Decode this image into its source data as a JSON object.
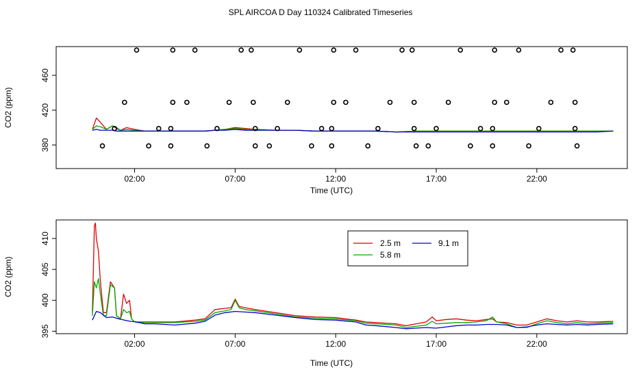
{
  "title": "SPL AIRCOA D  Day 110324  Calibrated Timeseries",
  "colors": {
    "s1": "#dd0000",
    "s2": "#00aa00",
    "s3": "#0000cc",
    "frame": "#000000"
  },
  "chart_data": [
    {
      "type": "line",
      "panel": "top",
      "xlabel": "Time (UTC)",
      "ylabel": "CO2 (ppm)",
      "xlim": [
        -1.9,
        26.5
      ],
      "ylim": [
        353,
        493
      ],
      "xticks": [
        2,
        7,
        12,
        17,
        22
      ],
      "xtick_labels": [
        "02:00",
        "07:00",
        "12:00",
        "17:00",
        "22:00"
      ],
      "yticks": [
        380,
        420,
        460
      ],
      "ytick_labels": [
        "380",
        "420",
        "460"
      ],
      "series": [
        {
          "name": "2.5 m",
          "x": [
            -0.1,
            0.1,
            0.3,
            0.6,
            0.9,
            1.1,
            1.3,
            1.6,
            2.0,
            2.5,
            3.5,
            4.5,
            5.5,
            6.0,
            6.5,
            7.0,
            7.5,
            8.0,
            9.0,
            10.0,
            11.0,
            12.0,
            13.0,
            14.0,
            15.0,
            16.0,
            17.0,
            18.0,
            19.0,
            20.0,
            21.0,
            22.0,
            23.0,
            24.0,
            25.0,
            25.8
          ],
          "values": [
            398,
            411,
            406,
            398,
            402,
            399,
            397,
            400,
            398,
            396,
            396,
            396,
            396,
            397,
            398,
            400,
            399,
            398,
            397,
            397,
            396,
            396,
            396,
            396,
            395,
            396,
            396,
            396,
            396,
            396,
            396,
            396,
            396,
            396,
            396,
            396
          ]
        },
        {
          "name": "5.8 m",
          "x": [
            -0.1,
            0.1,
            0.3,
            0.6,
            0.9,
            1.1,
            1.3,
            1.6,
            2.0,
            2.5,
            3.5,
            4.5,
            5.5,
            6.0,
            6.5,
            7.0,
            7.5,
            8.0,
            9.0,
            10.0,
            11.0,
            12.0,
            13.0,
            14.0,
            15.0,
            16.0,
            17.0,
            18.0,
            19.0,
            20.0,
            21.0,
            22.0,
            23.0,
            24.0,
            25.0,
            25.8
          ],
          "values": [
            398,
            402,
            401,
            398,
            402,
            400,
            397,
            398,
            397,
            396,
            396,
            396,
            396,
            397,
            398,
            399,
            398,
            398,
            397,
            397,
            396,
            396,
            396,
            396,
            395,
            396,
            396,
            396,
            396,
            396,
            396,
            396,
            396,
            396,
            396,
            396
          ]
        },
        {
          "name": "9.1 m",
          "x": [
            -0.1,
            0.1,
            0.3,
            0.6,
            0.9,
            1.1,
            1.3,
            1.6,
            2.0,
            2.5,
            3.5,
            4.5,
            5.5,
            6.0,
            6.5,
            7.0,
            7.5,
            8.0,
            9.0,
            10.0,
            11.0,
            12.0,
            13.0,
            14.0,
            15.0,
            16.0,
            17.0,
            18.0,
            19.0,
            20.0,
            21.0,
            22.0,
            23.0,
            24.0,
            25.0,
            25.8
          ],
          "values": [
            397,
            398,
            397,
            397,
            397,
            396,
            396,
            396,
            396,
            396,
            396,
            396,
            396,
            397,
            397,
            398,
            397,
            397,
            397,
            397,
            396,
            396,
            396,
            396,
            395,
            395,
            395,
            395,
            395,
            395,
            395,
            395,
            395,
            395,
            395,
            396
          ]
        }
      ],
      "flags": [
        {
          "x": 0.4,
          "y": 379
        },
        {
          "x": 1.0,
          "y": 399
        },
        {
          "x": 1.5,
          "y": 429
        },
        {
          "x": 2.1,
          "y": 489
        },
        {
          "x": 2.7,
          "y": 379
        },
        {
          "x": 3.2,
          "y": 399
        },
        {
          "x": 3.8,
          "y": 379
        },
        {
          "x": 3.8,
          "y": 399
        },
        {
          "x": 3.9,
          "y": 429
        },
        {
          "x": 3.9,
          "y": 489
        },
        {
          "x": 4.6,
          "y": 429
        },
        {
          "x": 5.0,
          "y": 489
        },
        {
          "x": 5.6,
          "y": 379
        },
        {
          "x": 6.1,
          "y": 399
        },
        {
          "x": 6.7,
          "y": 429
        },
        {
          "x": 7.3,
          "y": 489
        },
        {
          "x": 7.8,
          "y": 489
        },
        {
          "x": 7.9,
          "y": 429
        },
        {
          "x": 8.0,
          "y": 379
        },
        {
          "x": 8.0,
          "y": 399
        },
        {
          "x": 8.7,
          "y": 379
        },
        {
          "x": 9.1,
          "y": 399
        },
        {
          "x": 9.6,
          "y": 429
        },
        {
          "x": 10.2,
          "y": 489
        },
        {
          "x": 10.8,
          "y": 379
        },
        {
          "x": 11.3,
          "y": 399
        },
        {
          "x": 11.8,
          "y": 379
        },
        {
          "x": 11.8,
          "y": 399
        },
        {
          "x": 11.9,
          "y": 429
        },
        {
          "x": 11.9,
          "y": 489
        },
        {
          "x": 12.5,
          "y": 429
        },
        {
          "x": 13.0,
          "y": 489
        },
        {
          "x": 13.6,
          "y": 379
        },
        {
          "x": 14.1,
          "y": 399
        },
        {
          "x": 14.7,
          "y": 429
        },
        {
          "x": 15.3,
          "y": 489
        },
        {
          "x": 15.8,
          "y": 489
        },
        {
          "x": 15.9,
          "y": 429
        },
        {
          "x": 15.9,
          "y": 399
        },
        {
          "x": 16.0,
          "y": 379
        },
        {
          "x": 16.6,
          "y": 379
        },
        {
          "x": 17.0,
          "y": 399
        },
        {
          "x": 17.6,
          "y": 429
        },
        {
          "x": 18.2,
          "y": 489
        },
        {
          "x": 18.7,
          "y": 379
        },
        {
          "x": 19.2,
          "y": 399
        },
        {
          "x": 19.8,
          "y": 379
        },
        {
          "x": 19.8,
          "y": 399
        },
        {
          "x": 19.9,
          "y": 429
        },
        {
          "x": 19.9,
          "y": 489
        },
        {
          "x": 20.5,
          "y": 429
        },
        {
          "x": 21.1,
          "y": 489
        },
        {
          "x": 21.6,
          "y": 379
        },
        {
          "x": 22.1,
          "y": 399
        },
        {
          "x": 22.7,
          "y": 429
        },
        {
          "x": 23.2,
          "y": 489
        },
        {
          "x": 23.8,
          "y": 489
        },
        {
          "x": 23.9,
          "y": 429
        },
        {
          "x": 23.9,
          "y": 399
        },
        {
          "x": 24.0,
          "y": 379
        }
      ]
    },
    {
      "type": "line",
      "panel": "bottom",
      "xlabel": "Time (UTC)",
      "ylabel": "CO2 (ppm)",
      "xlim": [
        -1.9,
        26.5
      ],
      "ylim": [
        394.6,
        413.0
      ],
      "xticks": [
        2,
        7,
        12,
        17,
        22
      ],
      "xtick_labels": [
        "02:00",
        "07:00",
        "12:00",
        "17:00",
        "22:00"
      ],
      "yticks": [
        395,
        400,
        405,
        410
      ],
      "ytick_labels": [
        "395",
        "400",
        "405",
        "410"
      ],
      "legend": {
        "position": "top-center",
        "entries": [
          "2.5 m",
          "5.8 m",
          "9.1 m"
        ]
      },
      "series": [
        {
          "name": "2.5 m",
          "x": [
            -0.1,
            0.0,
            0.05,
            0.1,
            0.2,
            0.3,
            0.45,
            0.6,
            0.8,
            1.0,
            1.1,
            1.3,
            1.45,
            1.6,
            1.75,
            1.85,
            2.0,
            2.2,
            2.5,
            3.0,
            4.0,
            5.0,
            5.5,
            6.0,
            6.5,
            6.8,
            7.0,
            7.2,
            7.5,
            8.0,
            9.0,
            10.0,
            11.0,
            12.0,
            13.0,
            13.5,
            14.0,
            15.0,
            15.5,
            16.0,
            16.5,
            16.8,
            17.0,
            17.5,
            18.0,
            18.5,
            19.0,
            19.5,
            19.8,
            20.0,
            20.5,
            21.0,
            21.5,
            22.0,
            22.5,
            23.0,
            23.5,
            24.0,
            24.5,
            25.0,
            25.8
          ],
          "values": [
            398.0,
            412.0,
            412.5,
            410.0,
            408.0,
            403.0,
            398.0,
            398.0,
            403.0,
            402.0,
            397.5,
            397.0,
            401.0,
            399.5,
            400.0,
            397.0,
            396.5,
            396.5,
            396.5,
            396.5,
            396.5,
            396.8,
            397.0,
            398.5,
            398.7,
            398.8,
            400.2,
            399.0,
            398.8,
            398.5,
            398.0,
            397.5,
            397.3,
            397.2,
            396.8,
            396.5,
            396.4,
            396.2,
            395.9,
            396.2,
            396.5,
            397.3,
            396.7,
            396.9,
            397.0,
            396.8,
            396.7,
            396.9,
            397.0,
            396.5,
            396.4,
            396.0,
            396.0,
            396.5,
            397.0,
            396.7,
            396.5,
            396.7,
            396.5,
            396.5,
            396.6
          ]
        },
        {
          "name": "5.8 m",
          "x": [
            -0.1,
            0.0,
            0.1,
            0.2,
            0.3,
            0.45,
            0.6,
            0.8,
            1.0,
            1.1,
            1.3,
            1.45,
            1.6,
            1.75,
            1.85,
            2.0,
            2.2,
            2.5,
            3.0,
            4.0,
            5.0,
            5.5,
            6.0,
            6.5,
            6.8,
            7.0,
            7.2,
            7.5,
            8.0,
            9.0,
            10.0,
            11.0,
            12.0,
            13.0,
            13.5,
            14.0,
            15.0,
            15.5,
            16.0,
            16.5,
            16.8,
            17.0,
            17.5,
            18.0,
            18.5,
            19.0,
            19.5,
            19.8,
            20.0,
            20.5,
            21.0,
            21.5,
            22.0,
            22.5,
            23.0,
            23.5,
            24.0,
            24.5,
            25.0,
            25.8
          ],
          "values": [
            397.5,
            403.0,
            402.0,
            403.5,
            401.0,
            397.5,
            397.5,
            402.5,
            402.0,
            397.5,
            397.0,
            398.5,
            398.0,
            398.2,
            397.0,
            396.5,
            396.4,
            396.4,
            396.4,
            396.4,
            396.6,
            396.8,
            398.0,
            398.3,
            398.5,
            400.0,
            398.8,
            398.5,
            398.3,
            397.8,
            397.3,
            397.1,
            397.0,
            396.7,
            396.3,
            396.2,
            396.0,
            395.6,
            395.8,
            396.0,
            396.6,
            396.2,
            396.3,
            396.4,
            396.4,
            396.5,
            396.7,
            397.3,
            396.5,
            396.2,
            395.6,
            395.6,
            396.2,
            396.7,
            396.4,
            396.2,
            396.4,
            396.2,
            396.3,
            396.4
          ]
        },
        {
          "name": "9.1 m",
          "x": [
            -0.1,
            0.1,
            0.3,
            0.6,
            0.9,
            1.2,
            1.5,
            1.8,
            2.1,
            2.5,
            3.0,
            4.0,
            5.0,
            5.5,
            6.0,
            6.5,
            7.0,
            7.5,
            8.0,
            9.0,
            10.0,
            11.0,
            12.0,
            13.0,
            13.5,
            14.0,
            15.0,
            15.5,
            16.0,
            16.5,
            17.0,
            17.5,
            18.0,
            18.5,
            19.0,
            19.5,
            20.0,
            20.5,
            21.0,
            21.5,
            22.0,
            22.5,
            23.0,
            23.5,
            24.0,
            24.5,
            25.0,
            25.8
          ],
          "values": [
            396.8,
            398.2,
            398.0,
            397.2,
            397.3,
            397.0,
            396.8,
            396.6,
            396.5,
            396.2,
            396.2,
            396.0,
            396.3,
            396.6,
            397.6,
            398.0,
            398.2,
            398.1,
            398.0,
            397.6,
            397.2,
            396.9,
            396.8,
            396.5,
            396.0,
            395.9,
            395.6,
            395.4,
            395.5,
            395.6,
            395.5,
            395.7,
            395.9,
            396.0,
            396.0,
            396.1,
            396.1,
            396.0,
            395.6,
            395.7,
            396.0,
            396.2,
            396.1,
            396.0,
            396.1,
            396.0,
            396.1,
            396.2
          ]
        }
      ]
    }
  ]
}
